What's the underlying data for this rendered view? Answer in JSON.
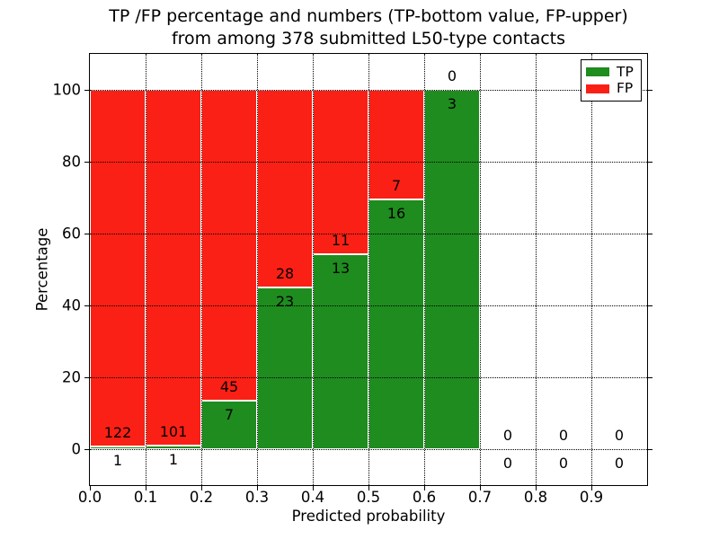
{
  "figure": {
    "title_line1": "TP /FP percentage and numbers (TP-bottom value, FP-upper)",
    "title_line2": "from among 378 submitted L50-type contacts"
  },
  "chart_data": {
    "type": "bar",
    "stacked": true,
    "title": "TP /FP percentage and numbers (TP-bottom value, FP-upper) from among 378 submitted L50-type contacts",
    "xlabel": "Predicted probability",
    "ylabel": "Percentage",
    "total_contacts": 378,
    "xlim": [
      0.0,
      1.0
    ],
    "ylim": [
      -10,
      110
    ],
    "x_ticks": [
      0.0,
      0.1,
      0.2,
      0.3,
      0.4,
      0.5,
      0.6,
      0.7,
      0.8,
      0.9
    ],
    "x_tick_labels": [
      "0.0",
      "0.1",
      "0.2",
      "0.3",
      "0.4",
      "0.5",
      "0.6",
      "0.7",
      "0.8",
      "0.9"
    ],
    "y_ticks": [
      0,
      20,
      40,
      60,
      80,
      100
    ],
    "grid": true,
    "grid_style": "dotted",
    "legend_position": "upper right",
    "series": [
      {
        "name": "TP",
        "color": "#1e8c1e"
      },
      {
        "name": "FP",
        "color": "#fb2015"
      }
    ],
    "bins": [
      {
        "x0": 0.0,
        "x1": 0.1,
        "tp": 1,
        "fp": 122,
        "tp_pct": 0.81,
        "fp_pct": 99.19
      },
      {
        "x0": 0.1,
        "x1": 0.2,
        "tp": 1,
        "fp": 101,
        "tp_pct": 0.98,
        "fp_pct": 99.02
      },
      {
        "x0": 0.2,
        "x1": 0.3,
        "tp": 7,
        "fp": 45,
        "tp_pct": 13.46,
        "fp_pct": 86.54
      },
      {
        "x0": 0.3,
        "x1": 0.4,
        "tp": 23,
        "fp": 28,
        "tp_pct": 45.1,
        "fp_pct": 54.9
      },
      {
        "x0": 0.4,
        "x1": 0.5,
        "tp": 13,
        "fp": 11,
        "tp_pct": 54.17,
        "fp_pct": 45.83
      },
      {
        "x0": 0.5,
        "x1": 0.6,
        "tp": 16,
        "fp": 7,
        "tp_pct": 69.57,
        "fp_pct": 30.43
      },
      {
        "x0": 0.6,
        "x1": 0.7,
        "tp": 3,
        "fp": 0,
        "tp_pct": 100.0,
        "fp_pct": 0.0
      },
      {
        "x0": 0.7,
        "x1": 0.8,
        "tp": 0,
        "fp": 0,
        "tp_pct": 0.0,
        "fp_pct": 0.0
      },
      {
        "x0": 0.8,
        "x1": 0.9,
        "tp": 0,
        "fp": 0,
        "tp_pct": 0.0,
        "fp_pct": 0.0
      },
      {
        "x0": 0.9,
        "x1": 1.0,
        "tp": 0,
        "fp": 0,
        "tp_pct": 0.0,
        "fp_pct": 0.0
      }
    ]
  }
}
